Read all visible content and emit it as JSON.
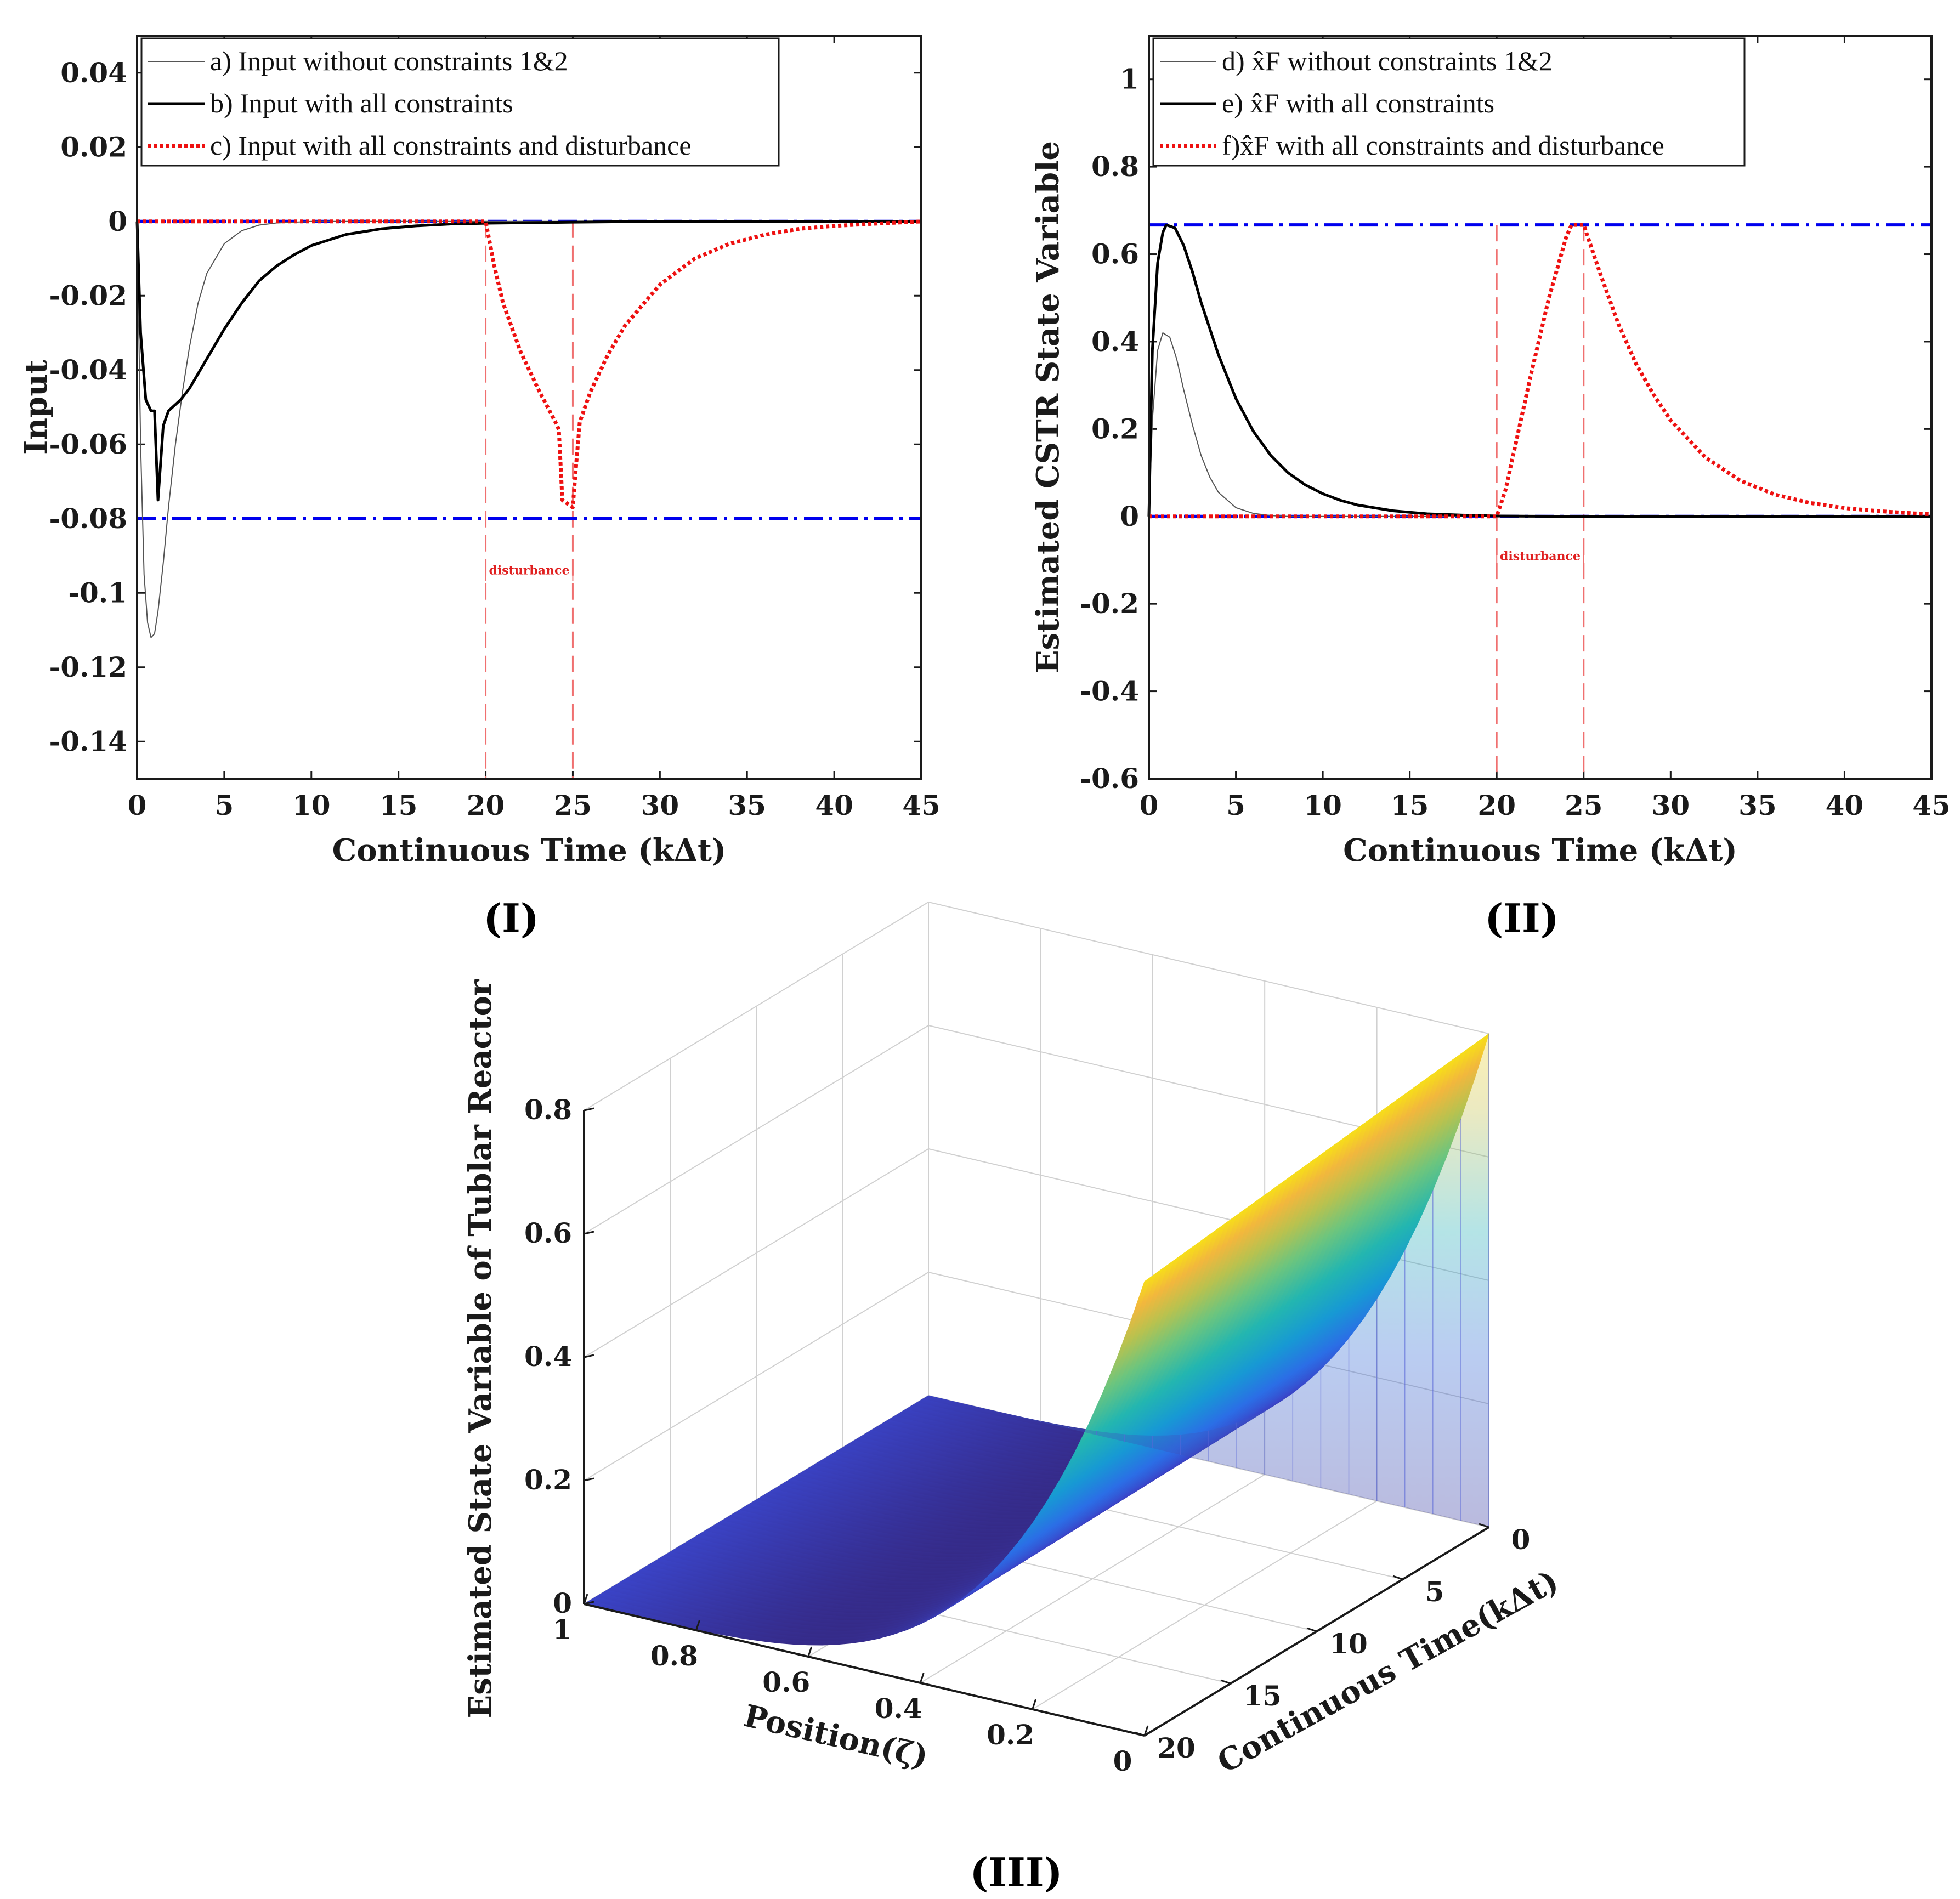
{
  "colors": {
    "axis": "#1a1a1a",
    "limit": "#0000ee",
    "red": "#ee1111",
    "grid": "#cccccc"
  },
  "panel_labels": {
    "i": "(I)",
    "ii": "(II)",
    "iii": "(III)"
  },
  "chart_data": [
    {
      "id": "I",
      "type": "line",
      "xlabel": "Continuous Time (kΔt)",
      "ylabel": "Input",
      "xlim": [
        0,
        45
      ],
      "ylim": [
        -0.15,
        0.05
      ],
      "xticks": [
        0,
        5,
        10,
        15,
        20,
        25,
        30,
        35,
        40,
        45
      ],
      "yticks": [
        0.04,
        0.02,
        0,
        -0.02,
        -0.04,
        -0.06,
        -0.08,
        -0.1,
        -0.12,
        -0.14
      ],
      "ytick_labels": [
        "0.04",
        "0.02",
        "0",
        "-0.02",
        "-0.04",
        "-0.06",
        "-0.08",
        "-0.1",
        "-0.12",
        "-0.14"
      ],
      "limits": [
        0,
        -0.08
      ],
      "disturbance": {
        "start": 20,
        "end": 25,
        "label": "disturbance",
        "label_y": -0.095
      },
      "legend": [
        "a) Input without constraints 1&2",
        "b) Input with all constraints",
        "c) Input with all constraints and disturbance"
      ],
      "series": [
        {
          "name": "a",
          "style": "thin",
          "x": [
            0,
            0.2,
            0.4,
            0.6,
            0.8,
            1.0,
            1.2,
            1.5,
            1.8,
            2.2,
            2.6,
            3.0,
            3.5,
            4,
            5,
            6,
            7,
            8,
            10,
            15,
            20,
            25,
            30,
            35,
            40,
            45
          ],
          "y": [
            0,
            -0.06,
            -0.095,
            -0.108,
            -0.112,
            -0.111,
            -0.105,
            -0.092,
            -0.077,
            -0.06,
            -0.046,
            -0.034,
            -0.022,
            -0.014,
            -0.006,
            -0.0025,
            -0.001,
            -0.0004,
            0,
            0,
            0,
            0,
            0,
            0,
            0,
            0
          ]
        },
        {
          "name": "b",
          "style": "thick",
          "x": [
            0,
            0.2,
            0.5,
            0.8,
            1.0,
            1.2,
            1.5,
            1.8,
            2.5,
            3,
            4,
            5,
            6,
            7,
            8,
            9,
            10,
            12,
            14,
            16,
            18,
            20,
            25,
            30,
            35,
            40,
            45
          ],
          "y": [
            0,
            -0.03,
            -0.048,
            -0.051,
            -0.051,
            -0.075,
            -0.055,
            -0.051,
            -0.048,
            -0.045,
            -0.037,
            -0.029,
            -0.022,
            -0.016,
            -0.012,
            -0.009,
            -0.0065,
            -0.0035,
            -0.002,
            -0.0012,
            -0.0007,
            -0.0005,
            -0.0002,
            0,
            0,
            0,
            0
          ]
        },
        {
          "name": "c",
          "style": "dotted",
          "x": [
            0,
            20,
            20.5,
            21,
            22,
            23,
            24,
            24.2,
            24.4,
            25,
            25.2,
            25.4,
            26,
            27,
            28,
            30,
            32,
            34,
            36,
            38,
            40,
            42,
            45
          ],
          "y": [
            0,
            0,
            -0.012,
            -0.022,
            -0.035,
            -0.045,
            -0.054,
            -0.056,
            -0.075,
            -0.077,
            -0.065,
            -0.054,
            -0.046,
            -0.036,
            -0.028,
            -0.017,
            -0.01,
            -0.006,
            -0.0036,
            -0.002,
            -0.0012,
            -0.0007,
            0
          ]
        }
      ]
    },
    {
      "id": "II",
      "type": "line",
      "xlabel": "Continuous Time (kΔt)",
      "ylabel": "Estimated CSTR State Variable",
      "xlim": [
        0,
        45
      ],
      "ylim": [
        -0.6,
        1.1
      ],
      "xticks": [
        0,
        5,
        10,
        15,
        20,
        25,
        30,
        35,
        40,
        45
      ],
      "yticks": [
        1,
        0.8,
        0.6,
        0.4,
        0.2,
        0,
        -0.2,
        -0.4,
        -0.6
      ],
      "ytick_labels": [
        "1",
        "0.8",
        "0.6",
        "0.4",
        "0.2",
        "0",
        "-0.2",
        "-0.4",
        "-0.6"
      ],
      "limits": [
        0.667,
        0
      ],
      "disturbance": {
        "start": 20,
        "end": 25,
        "label": "disturbance",
        "label_y": -0.1
      },
      "legend": [
        "d) x̂F without constraints 1&2",
        "e) x̂F with all constraints",
        "f)x̂F with all constraints and disturbance"
      ],
      "series": [
        {
          "name": "d",
          "style": "thin",
          "x": [
            0,
            0.2,
            0.5,
            0.8,
            1.2,
            1.6,
            2,
            2.5,
            3,
            3.5,
            4,
            5,
            6,
            7,
            8,
            10,
            20,
            30,
            45
          ],
          "y": [
            0,
            0.22,
            0.38,
            0.42,
            0.41,
            0.36,
            0.29,
            0.21,
            0.14,
            0.09,
            0.055,
            0.02,
            0.007,
            0.002,
            0,
            0,
            0,
            0,
            0
          ]
        },
        {
          "name": "e",
          "style": "thick",
          "x": [
            0,
            0.2,
            0.5,
            0.8,
            1.0,
            1.5,
            2,
            2.5,
            3,
            4,
            5,
            6,
            7,
            8,
            9,
            10,
            11,
            12,
            14,
            16,
            18,
            20,
            22,
            25,
            30,
            45
          ],
          "y": [
            0,
            0.38,
            0.58,
            0.65,
            0.667,
            0.66,
            0.62,
            0.56,
            0.49,
            0.37,
            0.27,
            0.195,
            0.14,
            0.1,
            0.072,
            0.052,
            0.037,
            0.026,
            0.013,
            0.006,
            0.003,
            0.001,
            0.0005,
            0,
            0,
            0
          ]
        },
        {
          "name": "f",
          "style": "dotted",
          "x": [
            0,
            20,
            20.5,
            21,
            22,
            23,
            24,
            24.3,
            25,
            26,
            27,
            28,
            29,
            30,
            32,
            34,
            36,
            38,
            40,
            42,
            44,
            45
          ],
          "y": [
            0,
            0,
            0.06,
            0.15,
            0.33,
            0.5,
            0.64,
            0.667,
            0.667,
            0.55,
            0.44,
            0.35,
            0.28,
            0.22,
            0.135,
            0.082,
            0.05,
            0.031,
            0.019,
            0.012,
            0.007,
            0.005
          ]
        }
      ]
    },
    {
      "id": "III",
      "type": "surface",
      "xlabel": "Position(ζ)",
      "ylabel": "Continuous Time(kΔt)",
      "zlabel": "Estimated State Variable of Tublar Reactor",
      "position_ticks": [
        1,
        0.8,
        0.6,
        0.4,
        0.2,
        0
      ],
      "time_ticks": [
        0,
        5,
        10,
        15,
        20
      ],
      "z_ticks": [
        0,
        0.2,
        0.4,
        0.6,
        0.8
      ],
      "zlim": [
        0,
        0.8
      ],
      "time_range": [
        0,
        20
      ],
      "position_range": [
        0,
        1
      ],
      "surface_model": "z = 0.8 * (1 - zeta)^4 * (1 - 0.08 * t/20)"
    }
  ]
}
